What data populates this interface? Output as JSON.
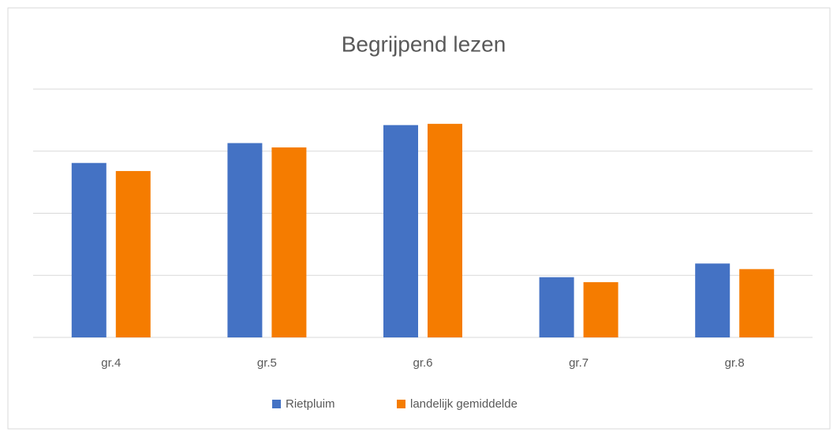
{
  "chart_data": {
    "type": "bar",
    "title": "Begrijpend lezen",
    "categories": [
      "gr.4",
      "gr.5",
      "gr.6",
      "gr.7",
      "gr.8"
    ],
    "series": [
      {
        "name": "Rietpluim",
        "color": "#4472c4",
        "values": [
          2.81,
          3.13,
          3.42,
          0.97,
          1.19
        ]
      },
      {
        "name": "landelijk gemiddelde",
        "color": "#f57c00",
        "values": [
          2.68,
          3.06,
          3.44,
          0.89,
          1.1
        ]
      }
    ],
    "ylim": [
      0,
      4
    ],
    "yticks": [
      0,
      1,
      2,
      3,
      4
    ],
    "grid": true,
    "legend": "bottom"
  }
}
